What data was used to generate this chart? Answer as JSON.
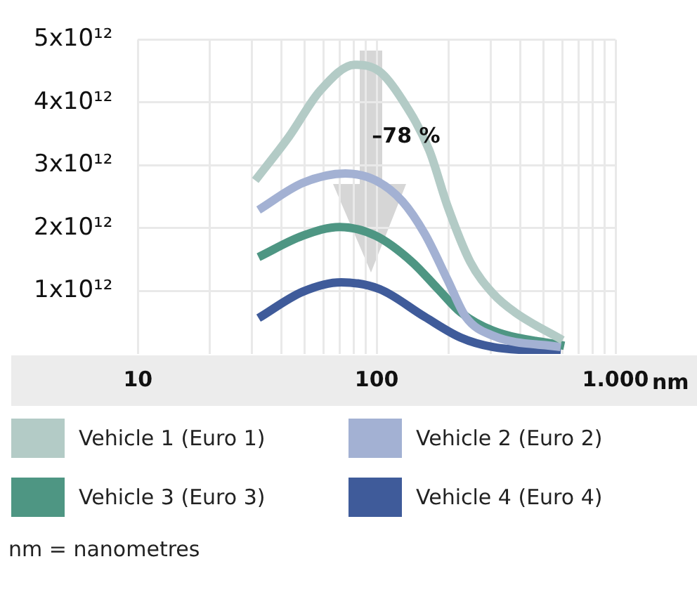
{
  "chart_data": {
    "type": "line",
    "xlabel": "nm",
    "log": "x",
    "xlim": [
      10,
      1000
    ],
    "xticks": [
      {
        "value": 10,
        "label": "10"
      },
      {
        "value": 20,
        "label": null
      },
      {
        "value": 30,
        "label": null
      },
      {
        "value": 40,
        "label": null
      },
      {
        "value": 50,
        "label": null
      },
      {
        "value": 60,
        "label": null
      },
      {
        "value": 70,
        "label": null
      },
      {
        "value": 80,
        "label": null
      },
      {
        "value": 90,
        "label": null
      },
      {
        "value": 100,
        "label": "100"
      },
      {
        "value": 200,
        "label": null
      },
      {
        "value": 300,
        "label": null
      },
      {
        "value": 400,
        "label": null
      },
      {
        "value": 500,
        "label": null
      },
      {
        "value": 600,
        "label": null
      },
      {
        "value": 700,
        "label": null
      },
      {
        "value": 800,
        "label": null
      },
      {
        "value": 900,
        "label": null
      },
      {
        "value": 1000,
        "label": "1.000"
      }
    ],
    "ylim": [
      0,
      5000000000000
    ],
    "yticks": [
      {
        "value": 1000000000000,
        "label": "1x10¹²"
      },
      {
        "value": 2000000000000,
        "label": "2x10¹²"
      },
      {
        "value": 3000000000000,
        "label": "3x10¹²"
      },
      {
        "value": 4000000000000,
        "label": "4x10¹²"
      },
      {
        "value": 5000000000000,
        "label": "5x10¹²"
      }
    ],
    "grid": true,
    "legend": "bottom",
    "marker": "none",
    "line_style": "solid",
    "annotations": [
      "–78 %",
      "nm = nanometres"
    ],
    "series": [
      {
        "name": "Vehicle 1 (Euro 1)",
        "color": "#b3cbc6",
        "x": [
          31,
          43,
          58,
          81,
          103,
          128,
          166,
          198,
          246,
          307,
          380,
          600
        ],
        "values": [
          2760000000000,
          3460000000000,
          4190000000000,
          4600000000000,
          4490000000000,
          4040000000000,
          3240000000000,
          2350000000000,
          1470000000000,
          960000000000,
          660000000000,
          220000000000
        ]
      },
      {
        "name": "Vehicle 2 (Euro 2)",
        "color": "#a3b1d3",
        "x": [
          32,
          49,
          74,
          99,
          128,
          159,
          198,
          236,
          307,
          590
        ],
        "values": [
          2290000000000,
          2720000000000,
          2870000000000,
          2760000000000,
          2430000000000,
          1910000000000,
          1180000000000,
          590000000000,
          290000000000,
          110000000000
        ]
      },
      {
        "name": "Vehicle 3 (Euro 3)",
        "color": "#4e9683",
        "x": [
          32,
          49,
          70,
          99,
          140,
          181,
          225,
          307,
          610
        ],
        "values": [
          1540000000000,
          1880000000000,
          2020000000000,
          1880000000000,
          1470000000000,
          1030000000000,
          660000000000,
          370000000000,
          130000000000
        ]
      },
      {
        "name": "Vehicle 4 (Euro 4)",
        "color": "#3f5b9a",
        "x": [
          32,
          49,
          71,
          103,
          159,
          225,
          307,
          590
        ],
        "values": [
          570000000000,
          990000000000,
          1140000000000,
          1030000000000,
          590000000000,
          260000000000,
          110000000000,
          40000000000
        ]
      }
    ]
  }
}
